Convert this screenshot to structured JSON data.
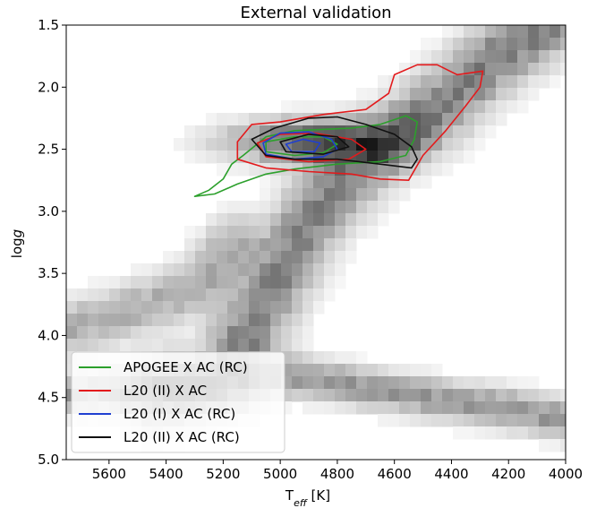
{
  "chart_data": {
    "type": "heatmap",
    "title": "External validation",
    "xlabel": "T",
    "xlabel_sub": "eff",
    "xlabel_unit": " [K]",
    "ylabel": "log",
    "ylabel_italic": "g",
    "xlim": [
      5750,
      4000
    ],
    "ylim": [
      5.0,
      1.5
    ],
    "x_inverted": true,
    "y_inverted": true,
    "x_ticks": [
      5600,
      5400,
      5200,
      5000,
      4800,
      4600,
      4400,
      4200,
      4000
    ],
    "y_ticks": [
      1.5,
      2.0,
      2.5,
      3.0,
      3.5,
      4.0,
      4.5,
      5.0
    ],
    "y_tick_labels": [
      "1.5",
      "2.0",
      "2.5",
      "3.0",
      "3.5",
      "4.0",
      "4.5",
      "5.0"
    ],
    "background": "grayscale 2D density of stars (Kiel diagram)",
    "legend_position": "lower-left",
    "series": [
      {
        "name": " APOGEE X AC (RC)",
        "color": "#2ca02c",
        "contours": [
          [
            [
              5300,
              2.88
            ],
            [
              5250,
              2.83
            ],
            [
              5200,
              2.74
            ],
            [
              5170,
              2.62
            ],
            [
              5130,
              2.55
            ],
            [
              5050,
              2.4
            ],
            [
              4950,
              2.35
            ],
            [
              4850,
              2.34
            ],
            [
              4750,
              2.33
            ],
            [
              4650,
              2.3
            ],
            [
              4560,
              2.23
            ],
            [
              4520,
              2.28
            ],
            [
              4530,
              2.42
            ],
            [
              4560,
              2.55
            ],
            [
              4650,
              2.6
            ],
            [
              4800,
              2.62
            ],
            [
              4950,
              2.66
            ],
            [
              5050,
              2.7
            ],
            [
              5150,
              2.78
            ],
            [
              5230,
              2.86
            ],
            [
              5300,
              2.88
            ]
          ],
          [
            [
              5050,
              2.44
            ],
            [
              4950,
              2.4
            ],
            [
              4850,
              2.4
            ],
            [
              4800,
              2.46
            ],
            [
              4850,
              2.53
            ],
            [
              4950,
              2.55
            ],
            [
              5050,
              2.52
            ],
            [
              5050,
              2.44
            ]
          ]
        ]
      },
      {
        "name": "L20 (II) X AC",
        "color": "#e31a1c",
        "contours": [
          [
            [
              5150,
              2.44
            ],
            [
              5100,
              2.3
            ],
            [
              5000,
              2.28
            ],
            [
              4850,
              2.22
            ],
            [
              4700,
              2.18
            ],
            [
              4620,
              2.05
            ],
            [
              4600,
              1.9
            ],
            [
              4520,
              1.82
            ],
            [
              4450,
              1.82
            ],
            [
              4380,
              1.9
            ],
            [
              4290,
              1.87
            ],
            [
              4300,
              2.0
            ],
            [
              4350,
              2.15
            ],
            [
              4420,
              2.35
            ],
            [
              4500,
              2.55
            ],
            [
              4550,
              2.75
            ],
            [
              4650,
              2.74
            ],
            [
              4750,
              2.7
            ],
            [
              4900,
              2.68
            ],
            [
              5050,
              2.65
            ],
            [
              5150,
              2.58
            ],
            [
              5150,
              2.44
            ]
          ],
          [
            [
              5080,
              2.45
            ],
            [
              5000,
              2.38
            ],
            [
              4880,
              2.37
            ],
            [
              4750,
              2.42
            ],
            [
              4700,
              2.5
            ],
            [
              4760,
              2.58
            ],
            [
              4900,
              2.6
            ],
            [
              5050,
              2.56
            ],
            [
              5080,
              2.45
            ]
          ]
        ]
      },
      {
        "name": "L20 (I) X AC (RC)",
        "color": "#1f3fd1",
        "contours": [
          [
            [
              5060,
              2.45
            ],
            [
              5000,
              2.37
            ],
            [
              4900,
              2.36
            ],
            [
              4820,
              2.42
            ],
            [
              4800,
              2.5
            ],
            [
              4850,
              2.56
            ],
            [
              4950,
              2.58
            ],
            [
              5050,
              2.54
            ],
            [
              5060,
              2.45
            ]
          ],
          [
            [
              4980,
              2.46
            ],
            [
              4920,
              2.42
            ],
            [
              4860,
              2.45
            ],
            [
              4880,
              2.52
            ],
            [
              4960,
              2.52
            ],
            [
              4980,
              2.46
            ]
          ]
        ]
      },
      {
        "name": "L20 (II) X AC (RC)",
        "color": "#111111",
        "contours": [
          [
            [
              5100,
              2.42
            ],
            [
              5020,
              2.33
            ],
            [
              4900,
              2.25
            ],
            [
              4800,
              2.24
            ],
            [
              4700,
              2.3
            ],
            [
              4600,
              2.38
            ],
            [
              4540,
              2.48
            ],
            [
              4520,
              2.58
            ],
            [
              4540,
              2.65
            ],
            [
              4650,
              2.62
            ],
            [
              4800,
              2.58
            ],
            [
              4950,
              2.58
            ],
            [
              5050,
              2.55
            ],
            [
              5100,
              2.42
            ]
          ],
          [
            [
              5000,
              2.44
            ],
            [
              4900,
              2.38
            ],
            [
              4800,
              2.4
            ],
            [
              4760,
              2.48
            ],
            [
              4850,
              2.54
            ],
            [
              4980,
              2.52
            ],
            [
              5000,
              2.44
            ]
          ]
        ]
      }
    ]
  }
}
